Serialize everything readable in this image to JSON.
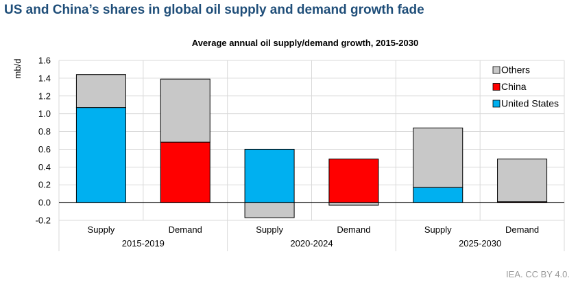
{
  "header": {
    "title": "US and China’s shares in global oil supply and demand growth fade"
  },
  "credit": "IEA. CC BY 4.0.",
  "chart_data": {
    "type": "bar",
    "stacked": true,
    "title": "Average annual oil supply/demand growth, 2015-2030",
    "ylabel": "mb/d",
    "xlabel": "",
    "ylim": [
      -0.2,
      1.6
    ],
    "yticks": [
      -0.2,
      0.0,
      0.2,
      0.4,
      0.6,
      0.8,
      1.0,
      1.2,
      1.4,
      1.6
    ],
    "ytick_labels": [
      "-0.2",
      "0.0",
      "0.2",
      "0.4",
      "0.6",
      "0.8",
      "1.0",
      "1.2",
      "1.4",
      "1.6"
    ],
    "grid": true,
    "legend_position": "top-right",
    "groups": [
      "2015-2019",
      "2020-2024",
      "2025-2030"
    ],
    "categories": [
      "Supply",
      "Demand",
      "Supply",
      "Demand",
      "Supply",
      "Demand"
    ],
    "series": [
      {
        "name": "United States",
        "color": "#00b0f0",
        "values": [
          1.07,
          0,
          0.6,
          0,
          0.17,
          0
        ]
      },
      {
        "name": "China",
        "color": "#ff0000",
        "values": [
          0,
          0.68,
          0,
          0.49,
          0,
          0.01
        ]
      },
      {
        "name": "Others",
        "color": "#c8c8c8",
        "values": [
          0.37,
          0.71,
          -0.17,
          -0.03,
          0.67,
          0.48
        ]
      }
    ],
    "legend_order": [
      "Others",
      "China",
      "United States"
    ]
  }
}
